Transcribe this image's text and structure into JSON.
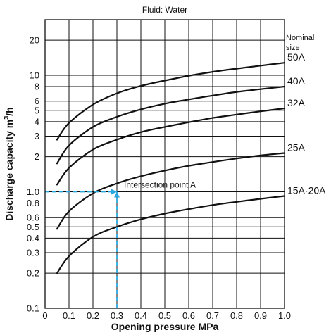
{
  "chart_data": {
    "type": "line",
    "title": "Fluid: Water",
    "xlabel": "Opening pressure MPa",
    "ylabel_text": "Discharge capacity m",
    "ylabel_sup": "3",
    "ylabel_tail": "/h",
    "x_scale": "linear",
    "y_scale": "log",
    "xlim": [
      0,
      1.0
    ],
    "ylim": [
      0.1,
      30
    ],
    "x_ticks": [
      0,
      0.1,
      0.2,
      0.3,
      0.4,
      0.5,
      0.6,
      0.7,
      0.8,
      0.9,
      1.0
    ],
    "x_tick_labels": [
      "0",
      "0.1",
      "0.2",
      "0.3",
      "0.4",
      "0.5",
      "0.6",
      "0.7",
      "0.8",
      "0.9",
      "1.0"
    ],
    "y_ticks": [
      0.1,
      0.2,
      0.3,
      0.4,
      0.5,
      0.6,
      0.8,
      1.0,
      2,
      3,
      4,
      5,
      6,
      8,
      10,
      20
    ],
    "y_tick_labels": [
      "0.1",
      "0.2",
      "0.3",
      "0.4",
      "0.5",
      "0.6",
      "0.8",
      "1.0",
      "2",
      "3",
      "4",
      "5",
      "6",
      "8",
      "10",
      "20"
    ],
    "grid": true,
    "legend_header": [
      "Nominal",
      "size"
    ],
    "series": [
      {
        "name": "50A",
        "x": [
          0.05,
          0.1,
          0.2,
          0.3,
          0.4,
          0.5,
          0.6,
          0.7,
          0.8,
          0.9,
          1.0
        ],
        "y": [
          2.8,
          3.9,
          5.6,
          7.0,
          8.1,
          9.0,
          9.9,
          10.7,
          11.4,
          12.1,
          12.8
        ]
      },
      {
        "name": "40A",
        "x": [
          0.05,
          0.1,
          0.2,
          0.3,
          0.4,
          0.5,
          0.6,
          0.7,
          0.8,
          0.9,
          1.0
        ],
        "y": [
          1.75,
          2.5,
          3.6,
          4.4,
          5.1,
          5.7,
          6.2,
          6.7,
          7.2,
          7.6,
          8.0
        ]
      },
      {
        "name": "32A",
        "x": [
          0.05,
          0.1,
          0.2,
          0.3,
          0.4,
          0.5,
          0.6,
          0.7,
          0.8,
          0.9,
          1.0
        ],
        "y": [
          1.15,
          1.6,
          2.3,
          2.8,
          3.25,
          3.6,
          3.95,
          4.3,
          4.6,
          4.9,
          5.2
        ]
      },
      {
        "name": "25A",
        "x": [
          0.05,
          0.1,
          0.2,
          0.3,
          0.4,
          0.5,
          0.6,
          0.7,
          0.8,
          0.9,
          1.0
        ],
        "y": [
          0.48,
          0.68,
          0.97,
          1.18,
          1.36,
          1.52,
          1.67,
          1.8,
          1.93,
          2.05,
          2.15
        ]
      },
      {
        "name": "15A·20A",
        "x": [
          0.05,
          0.1,
          0.2,
          0.3,
          0.4,
          0.5,
          0.6,
          0.7,
          0.8,
          0.9,
          1.0
        ],
        "y": [
          0.2,
          0.28,
          0.41,
          0.5,
          0.58,
          0.65,
          0.71,
          0.77,
          0.82,
          0.87,
          0.92
        ]
      }
    ],
    "annotations": [
      {
        "text": "Intersection point A",
        "x": 0.3,
        "y": 1.0,
        "color": "#29a8e0"
      }
    ],
    "colors": {
      "curve": "#111111",
      "grid": "#111111",
      "annotation": "#29a8e0"
    }
  }
}
